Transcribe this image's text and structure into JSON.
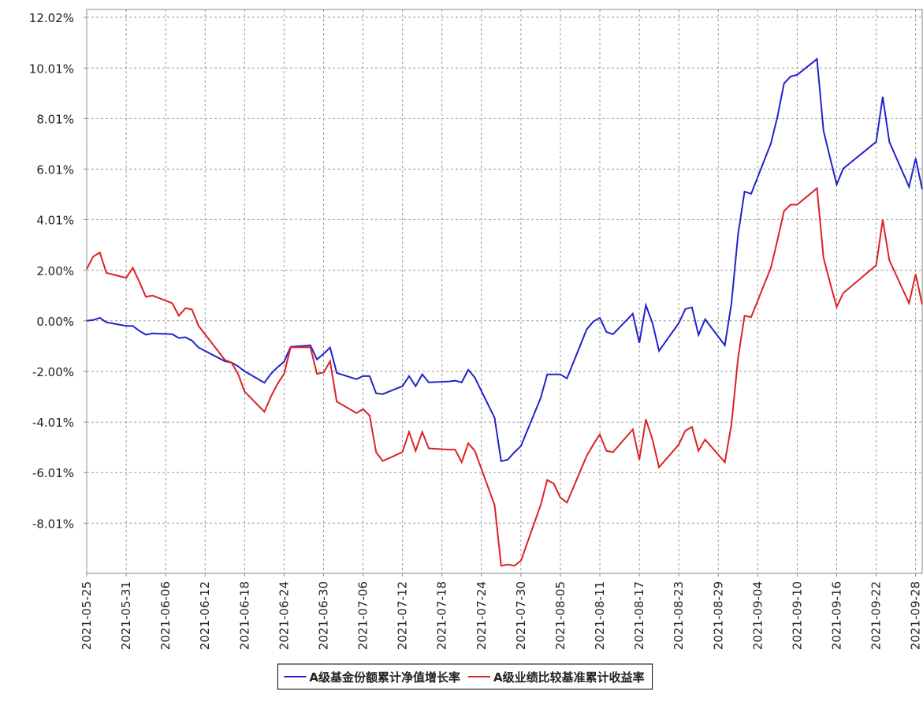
{
  "chart_data": {
    "type": "line",
    "x": [
      "2021-05-25",
      "2021-05-26",
      "2021-05-27",
      "2021-05-28",
      "2021-05-31",
      "2021-06-01",
      "2021-06-02",
      "2021-06-03",
      "2021-06-04",
      "2021-06-07",
      "2021-06-08",
      "2021-06-09",
      "2021-06-10",
      "2021-06-11",
      "2021-06-15",
      "2021-06-16",
      "2021-06-17",
      "2021-06-18",
      "2021-06-21",
      "2021-06-22",
      "2021-06-23",
      "2021-06-24",
      "2021-06-25",
      "2021-06-28",
      "2021-06-29",
      "2021-06-30",
      "2021-07-01",
      "2021-07-02",
      "2021-07-05",
      "2021-07-06",
      "2021-07-07",
      "2021-07-08",
      "2021-07-09",
      "2021-07-12",
      "2021-07-13",
      "2021-07-14",
      "2021-07-15",
      "2021-07-16",
      "2021-07-19",
      "2021-07-20",
      "2021-07-21",
      "2021-07-22",
      "2021-07-23",
      "2021-07-26",
      "2021-07-27",
      "2021-07-28",
      "2021-07-29",
      "2021-07-30",
      "2021-08-02",
      "2021-08-03",
      "2021-08-04",
      "2021-08-05",
      "2021-08-06",
      "2021-08-09",
      "2021-08-10",
      "2021-08-11",
      "2021-08-12",
      "2021-08-13",
      "2021-08-16",
      "2021-08-17",
      "2021-08-18",
      "2021-08-19",
      "2021-08-20",
      "2021-08-23",
      "2021-08-24",
      "2021-08-25",
      "2021-08-26",
      "2021-08-27",
      "2021-08-30",
      "2021-08-31",
      "2021-09-01",
      "2021-09-02",
      "2021-09-03",
      "2021-09-06",
      "2021-09-07",
      "2021-09-08",
      "2021-09-09",
      "2021-09-10",
      "2021-09-13",
      "2021-09-14",
      "2021-09-15",
      "2021-09-16",
      "2021-09-17",
      "2021-09-22",
      "2021-09-23",
      "2021-09-24",
      "2021-09-27",
      "2021-09-28",
      "2021-09-29"
    ],
    "series": [
      {
        "name": "A级基金份额累计净值增长率",
        "color": "#2222cc",
        "values": [
          0,
          0.03,
          0.12,
          -0.06,
          -0.2,
          -0.2,
          -0.4,
          -0.55,
          -0.5,
          -0.53,
          -0.68,
          -0.65,
          -0.78,
          -1.06,
          -1.6,
          -1.65,
          -1.8,
          -2.0,
          -2.45,
          -2.1,
          -1.84,
          -1.62,
          -1.03,
          -0.97,
          -1.53,
          -1.31,
          -1.06,
          -2.06,
          -2.31,
          -2.19,
          -2.19,
          -2.87,
          -2.9,
          -2.59,
          -2.19,
          -2.59,
          -2.12,
          -2.44,
          -2.4,
          -2.37,
          -2.44,
          -1.94,
          -2.25,
          -3.84,
          -5.56,
          -5.5,
          -5.21,
          -4.96,
          -3.06,
          -2.12,
          -2.12,
          -2.12,
          -2.28,
          -0.34,
          -0.03,
          0.12,
          -0.44,
          -0.53,
          0.28,
          -0.87,
          0.62,
          -0.09,
          -1.19,
          -0.09,
          0.47,
          0.53,
          -0.56,
          0.06,
          -0.97,
          0.69,
          3.4,
          5.12,
          5.03,
          7.02,
          8.09,
          9.4,
          9.68,
          9.74,
          10.37,
          7.52,
          6.46,
          5.4,
          6.03,
          7.09,
          8.87,
          7.09,
          5.31,
          6.43,
          5.21
        ]
      },
      {
        "name": "A级业绩比较基准累计收益率",
        "color": "#dd2222",
        "values": [
          2.05,
          2.55,
          2.7,
          1.9,
          1.7,
          2.1,
          1.55,
          0.95,
          1.0,
          0.7,
          0.2,
          0.5,
          0.45,
          -0.2,
          -1.55,
          -1.65,
          -2.1,
          -2.8,
          -3.6,
          -3.0,
          -2.5,
          -2.1,
          -1.05,
          -1.05,
          -2.1,
          -2.05,
          -1.6,
          -3.2,
          -3.65,
          -3.5,
          -3.75,
          -5.2,
          -5.55,
          -5.2,
          -4.4,
          -5.15,
          -4.4,
          -5.05,
          -5.1,
          -5.1,
          -5.6,
          -4.85,
          -5.15,
          -7.3,
          -9.7,
          -9.65,
          -9.7,
          -9.5,
          -7.3,
          -6.3,
          -6.45,
          -7.0,
          -7.2,
          -5.35,
          -4.9,
          -4.5,
          -5.15,
          -5.2,
          -4.3,
          -5.5,
          -3.9,
          -4.7,
          -5.8,
          -4.9,
          -4.35,
          -4.2,
          -5.15,
          -4.7,
          -5.6,
          -4.1,
          -1.5,
          0.2,
          0.15,
          2.1,
          3.2,
          4.35,
          4.6,
          4.6,
          5.25,
          2.5,
          1.5,
          0.55,
          1.1,
          2.2,
          4.0,
          2.4,
          0.7,
          1.85,
          0.65
        ]
      }
    ],
    "xlim": [
      "2021-05-25",
      "2021-09-29"
    ],
    "xticks": [
      "2021-05-25",
      "2021-05-31",
      "2021-06-06",
      "2021-06-12",
      "2021-06-18",
      "2021-06-24",
      "2021-06-30",
      "2021-07-06",
      "2021-07-12",
      "2021-07-18",
      "2021-07-24",
      "2021-07-30",
      "2021-08-05",
      "2021-08-11",
      "2021-08-17",
      "2021-08-23",
      "2021-08-29",
      "2021-09-04",
      "2021-09-10",
      "2021-09-16",
      "2021-09-22",
      "2021-09-28"
    ],
    "ylim": [
      -10,
      12.33
    ],
    "yticks": [
      {
        "value": -8.01,
        "label": "-8.01%"
      },
      {
        "value": -6.01,
        "label": "-6.01%"
      },
      {
        "value": -4.01,
        "label": "-4.01%"
      },
      {
        "value": -2.0,
        "label": "-2.00%"
      },
      {
        "value": 0,
        "label": "0.00%"
      },
      {
        "value": 2.0,
        "label": "2.00%"
      },
      {
        "value": 4.01,
        "label": "4.01%"
      },
      {
        "value": 6.01,
        "label": "6.01%"
      },
      {
        "value": 8.01,
        "label": "8.01%"
      },
      {
        "value": 10.01,
        "label": "10.01%"
      },
      {
        "value": 12.02,
        "label": "12.02%"
      }
    ],
    "grid": true,
    "legend": "bottom"
  }
}
